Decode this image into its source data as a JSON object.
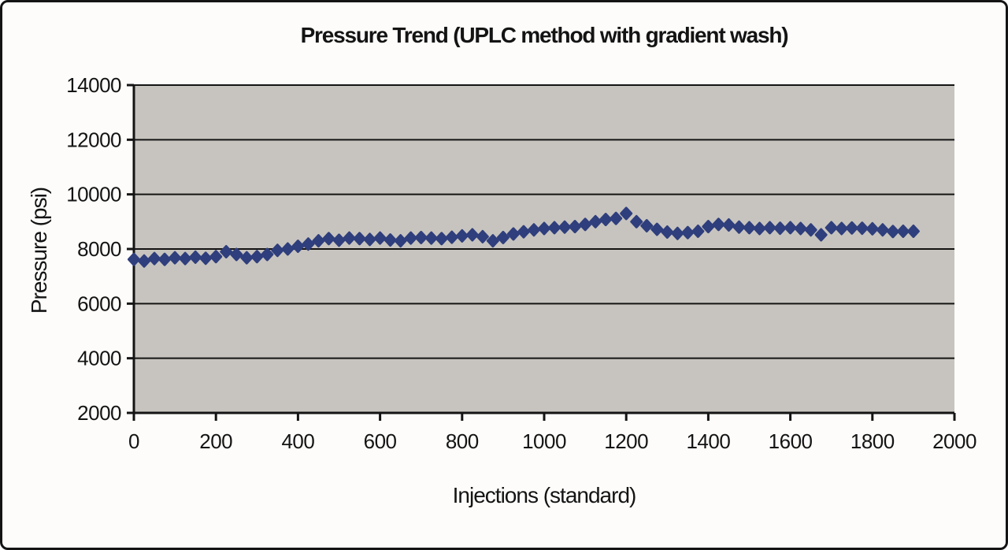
{
  "chart_data": {
    "type": "scatter",
    "marker_shape": "diamond",
    "title": "Pressure Trend (UPLC method with gradient wash)",
    "xlabel": "Injections (standard)",
    "ylabel": "Pressure (psi)",
    "xlim": [
      0,
      2000
    ],
    "ylim": [
      2000,
      14000
    ],
    "x_ticks": [
      0,
      200,
      400,
      600,
      800,
      1000,
      1200,
      1400,
      1600,
      1800,
      2000
    ],
    "y_ticks": [
      2000,
      4000,
      6000,
      8000,
      10000,
      12000,
      14000
    ],
    "grid": "horizontal-only",
    "legend": "none",
    "series": [
      {
        "name": "Pressure",
        "x": [
          0,
          25,
          50,
          75,
          100,
          125,
          150,
          175,
          200,
          225,
          250,
          275,
          300,
          325,
          350,
          375,
          400,
          425,
          450,
          475,
          500,
          525,
          550,
          575,
          600,
          625,
          650,
          675,
          700,
          725,
          750,
          775,
          800,
          825,
          850,
          875,
          900,
          925,
          950,
          975,
          1000,
          1025,
          1050,
          1075,
          1100,
          1125,
          1150,
          1175,
          1200,
          1225,
          1250,
          1275,
          1300,
          1325,
          1350,
          1375,
          1400,
          1425,
          1450,
          1475,
          1500,
          1525,
          1550,
          1575,
          1600,
          1625,
          1650,
          1675,
          1700,
          1725,
          1750,
          1775,
          1800,
          1825,
          1850,
          1875,
          1900
        ],
        "y": [
          7620,
          7560,
          7650,
          7620,
          7680,
          7650,
          7700,
          7660,
          7720,
          7900,
          7800,
          7680,
          7720,
          7800,
          7950,
          8000,
          8100,
          8180,
          8300,
          8380,
          8320,
          8400,
          8380,
          8350,
          8400,
          8330,
          8300,
          8400,
          8420,
          8400,
          8380,
          8430,
          8480,
          8520,
          8450,
          8300,
          8420,
          8550,
          8630,
          8700,
          8750,
          8780,
          8800,
          8820,
          8900,
          9000,
          9080,
          9120,
          9300,
          9000,
          8850,
          8720,
          8620,
          8570,
          8600,
          8650,
          8820,
          8900,
          8880,
          8800,
          8780,
          8750,
          8780,
          8760,
          8780,
          8750,
          8700,
          8520,
          8780,
          8750,
          8770,
          8760,
          8740,
          8700,
          8640,
          8650,
          8650
        ]
      }
    ]
  },
  "style": {
    "marker_color": "#2f3e7c",
    "plot_bg": "#c7c4bf",
    "line_color": "#141414",
    "text_color": "#141414",
    "page_bg": "#fdfcfa",
    "border_color": "#141414"
  }
}
